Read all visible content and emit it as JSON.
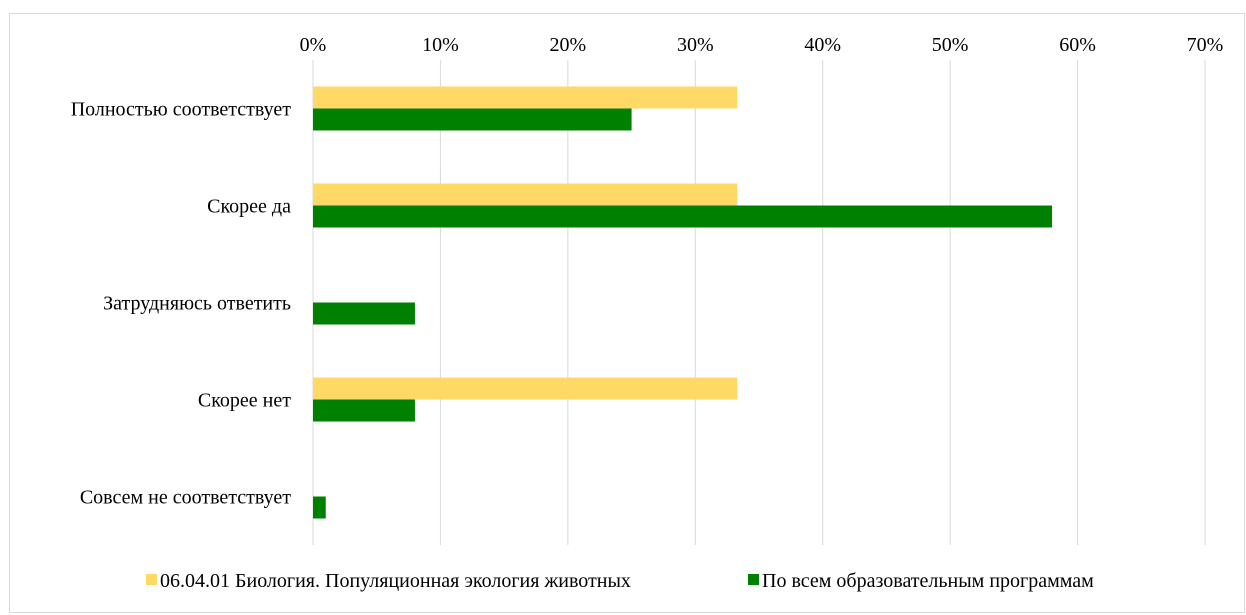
{
  "chart_data": {
    "type": "bar",
    "orientation": "horizontal",
    "categories": [
      "Полностью соответствует",
      "Скорее да",
      "Затрудняюсь ответить",
      "Скорее нет",
      "Совсем не соответствует"
    ],
    "series": [
      {
        "name": "06.04.01 Биология. Популяционная экология животных",
        "color": "#ffd966",
        "values": [
          33.3,
          33.3,
          0,
          33.3,
          0
        ]
      },
      {
        "name": "По всем образовательным программам",
        "color": "#008000",
        "values": [
          25,
          58,
          8,
          8,
          1
        ]
      }
    ],
    "x_ticks": [
      "0%",
      "10%",
      "20%",
      "30%",
      "40%",
      "50%",
      "60%",
      "70%"
    ],
    "xlim": [
      0,
      70
    ],
    "x_axis_position": "top",
    "grid": true,
    "legend_position": "bottom",
    "title": "",
    "xlabel": "",
    "ylabel": ""
  }
}
